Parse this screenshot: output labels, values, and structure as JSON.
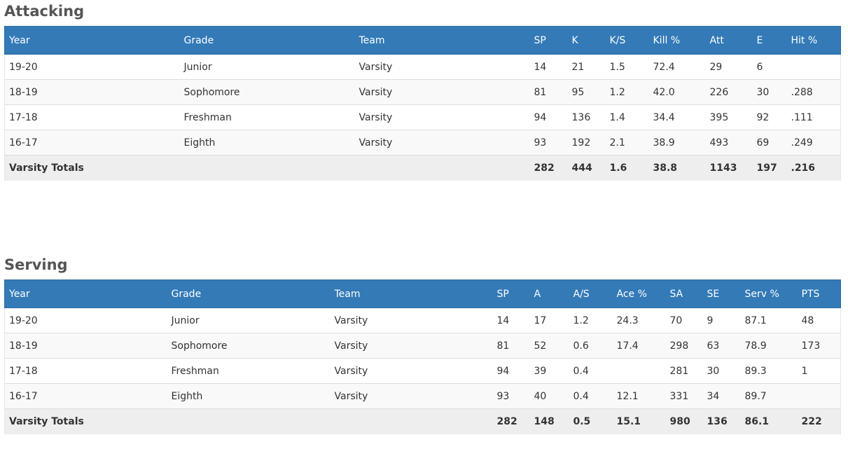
{
  "attacking": {
    "title": "Attacking",
    "columns": [
      "Year",
      "Grade",
      "Team",
      "SP",
      "K",
      "K/S",
      "Kill %",
      "Att",
      "E",
      "Hit %"
    ],
    "rows": [
      [
        "19-20",
        "Junior",
        "Varsity",
        "14",
        "21",
        "1.5",
        "72.4",
        "29",
        "6",
        ""
      ],
      [
        "18-19",
        "Sophomore",
        "Varsity",
        "81",
        "95",
        "1.2",
        "42.0",
        "226",
        "30",
        ".288"
      ],
      [
        "17-18",
        "Freshman",
        "Varsity",
        "94",
        "136",
        "1.4",
        "34.4",
        "395",
        "92",
        ".111"
      ],
      [
        "16-17",
        "Eighth",
        "Varsity",
        "93",
        "192",
        "2.1",
        "38.9",
        "493",
        "69",
        ".249"
      ]
    ],
    "totals": [
      "Varsity Totals",
      "",
      "",
      "282",
      "444",
      "1.6",
      "38.8",
      "1143",
      "197",
      ".216"
    ]
  },
  "serving": {
    "title": "Serving",
    "columns": [
      "Year",
      "Grade",
      "Team",
      "SP",
      "A",
      "A/S",
      "Ace %",
      "SA",
      "SE",
      "Serv %",
      "PTS"
    ],
    "rows": [
      [
        "19-20",
        "Junior",
        "Varsity",
        "14",
        "17",
        "1.2",
        "24.3",
        "70",
        "9",
        "87.1",
        "48"
      ],
      [
        "18-19",
        "Sophomore",
        "Varsity",
        "81",
        "52",
        "0.6",
        "17.4",
        "298",
        "63",
        "78.9",
        "173"
      ],
      [
        "17-18",
        "Freshman",
        "Varsity",
        "94",
        "39",
        "0.4",
        "",
        "281",
        "30",
        "89.3",
        "1"
      ],
      [
        "16-17",
        "Eighth",
        "Varsity",
        "93",
        "40",
        "0.4",
        "12.1",
        "331",
        "34",
        "89.7",
        ""
      ]
    ],
    "totals": [
      "Varsity Totals",
      "",
      "",
      "282",
      "148",
      "0.5",
      "15.1",
      "980",
      "136",
      "86.1",
      "222"
    ]
  },
  "colors": {
    "header_bg": "#337ab7",
    "header_text": "#ffffff",
    "totals_bg": "#eeeeee",
    "stripe_bg": "#f9f9f9"
  }
}
